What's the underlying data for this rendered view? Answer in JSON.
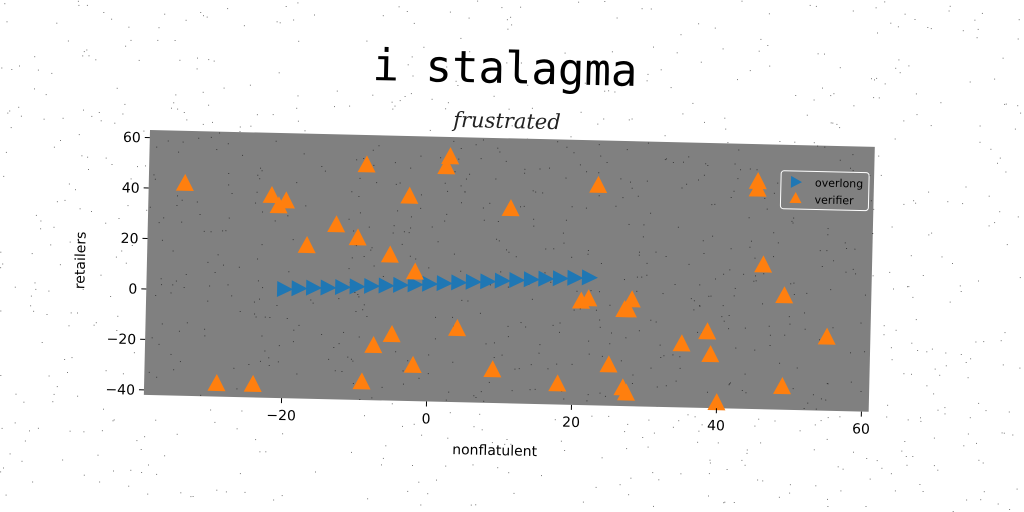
{
  "chart_data": {
    "type": "scatter",
    "title": "i stalagma",
    "subtitle": "frustrated",
    "xlabel": "nonflatulent",
    "ylabel": "retailers",
    "xlim": [
      -39,
      61
    ],
    "ylim": [
      -42,
      63
    ],
    "xticks": [
      -20,
      0,
      20,
      40,
      60
    ],
    "yticks": [
      -40,
      -20,
      0,
      20,
      40,
      60
    ],
    "xtick_labels": [
      "−20",
      "0",
      "20",
      "40",
      "60"
    ],
    "ytick_labels": [
      "−40",
      "−20",
      "0",
      "20",
      "40",
      "60"
    ],
    "grid": false,
    "legend_position": "top-right",
    "colors": {
      "plot_bg": "#808080",
      "overlong": "#1f77b4",
      "verifier": "#ff7f0e"
    },
    "series": [
      {
        "name": "overlong",
        "marker": "triangle-right",
        "x": [
          -20,
          -18,
          -16,
          -14,
          -12,
          -10,
          -8,
          -6,
          -4,
          -2,
          0,
          2,
          4,
          6,
          8,
          10,
          12,
          14,
          16,
          18,
          20,
          22
        ],
        "y": [
          1.2,
          1.6,
          2.0,
          2.2,
          2.5,
          2.9,
          3.2,
          3.5,
          3.9,
          4.2,
          4.6,
          5.0,
          5.4,
          5.8,
          6.1,
          6.5,
          6.9,
          7.3,
          7.7,
          8.0,
          8.3,
          8.6
        ]
      },
      {
        "name": "verifier",
        "marker": "triangle-up",
        "x": [
          -34,
          -21,
          -20,
          -22,
          -17,
          -13,
          -10,
          -9,
          -5.5,
          -3,
          -2,
          2,
          2.5,
          4,
          11,
          23,
          21,
          22,
          28,
          27,
          27.5,
          46,
          49,
          45,
          45,
          55,
          35,
          38.5,
          39,
          40,
          49,
          -29,
          -24,
          -9,
          -7.5,
          -5,
          -2,
          9,
          18,
          25,
          27,
          27.5
        ],
        "y": [
          42,
          34,
          36,
          38,
          18.5,
          27,
          22,
          51,
          15.5,
          39,
          9,
          51,
          55,
          -13,
          35,
          45,
          -1,
          0,
          0,
          -4,
          -4,
          15,
          3,
          48,
          45,
          -13,
          -17,
          -12,
          -21,
          -40,
          -33,
          -37,
          -37,
          -35,
          -20.5,
          -16,
          -28,
          -29,
          -34,
          -26,
          -35,
          -37
        ]
      }
    ]
  }
}
